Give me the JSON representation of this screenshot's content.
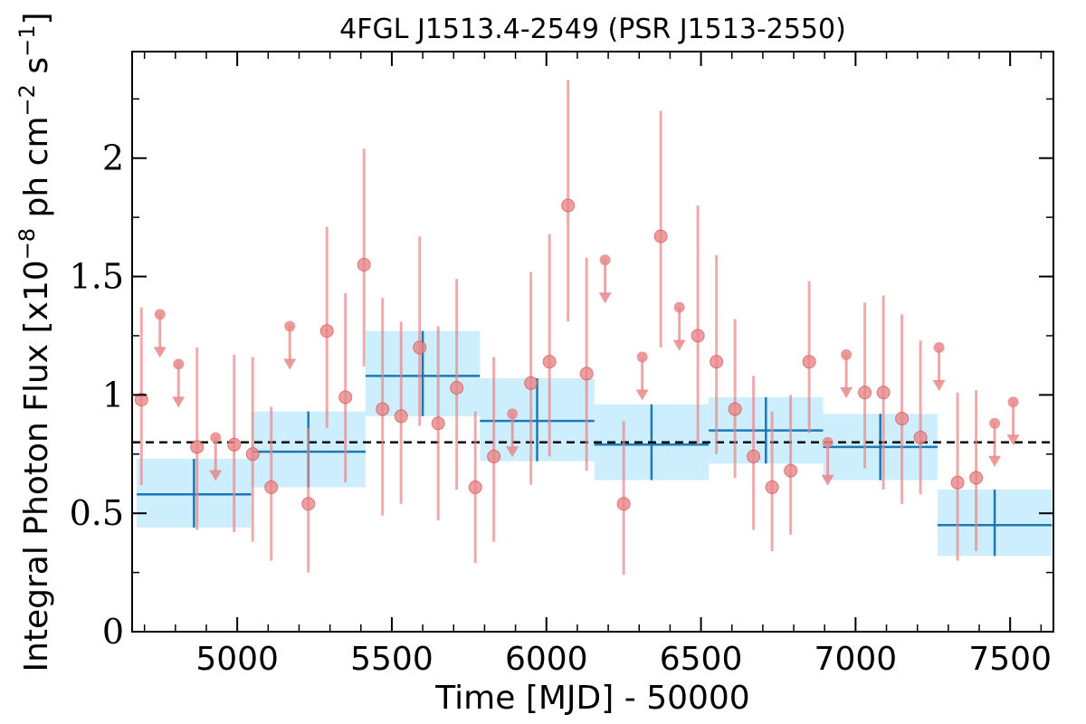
{
  "chart_data": {
    "type": "scatter",
    "title": "4FGL J1513.4-2549 (PSR J1513-2550)",
    "xlabel": "Time [MJD] - 50000",
    "ylabel": "Integral Photon Flux [x10",
    "ylabel_exp1": "−8",
    "ylabel_mid": " ph cm",
    "ylabel_exp2": "−2",
    "ylabel_mid2": " s",
    "ylabel_exp3": "−1",
    "ylabel_end": "]",
    "xlim": [
      4660,
      7640
    ],
    "ylim": [
      0,
      2.45
    ],
    "xticks": [
      5000,
      5500,
      6000,
      6500,
      7000,
      7500
    ],
    "yticks": [
      0,
      0.5,
      1,
      1.5,
      2
    ],
    "ytick_labels": [
      "0",
      "0.5",
      "1",
      "1.5",
      "2"
    ],
    "xtick_labels": [
      "5000",
      "5500",
      "6000",
      "6500",
      "7000",
      "7500"
    ],
    "reference_flux": 0.8,
    "colors": {
      "points": "#e8878a",
      "points_edge": "#d9534f",
      "bins_fill": "#cdeefc",
      "bins_line": "#1f77b4",
      "reference": "#000000"
    },
    "short_bins": [
      {
        "x": 4690,
        "y": 0.98,
        "lo": 0.62,
        "hi": 1.37
      },
      {
        "x": 4750,
        "ul": 1.34
      },
      {
        "x": 4810,
        "ul": 1.13
      },
      {
        "x": 4870,
        "y": 0.78,
        "lo": 0.43,
        "hi": 1.2
      },
      {
        "x": 4930,
        "ul": 0.82
      },
      {
        "x": 4990,
        "y": 0.79,
        "lo": 0.42,
        "hi": 1.17
      },
      {
        "x": 5050,
        "y": 0.75,
        "lo": 0.38,
        "hi": 1.16
      },
      {
        "x": 5110,
        "y": 0.61,
        "lo": 0.3,
        "hi": 0.95
      },
      {
        "x": 5170,
        "ul": 1.29
      },
      {
        "x": 5230,
        "y": 0.54,
        "lo": 0.25,
        "hi": 0.86
      },
      {
        "x": 5290,
        "y": 1.27,
        "lo": 0.86,
        "hi": 1.71
      },
      {
        "x": 5350,
        "y": 0.99,
        "lo": 0.63,
        "hi": 1.43
      },
      {
        "x": 5410,
        "y": 1.55,
        "lo": 1.12,
        "hi": 2.04
      },
      {
        "x": 5470,
        "y": 0.94,
        "lo": 0.49,
        "hi": 1.41
      },
      {
        "x": 5530,
        "y": 0.91,
        "lo": 0.54,
        "hi": 1.31
      },
      {
        "x": 5590,
        "y": 1.2,
        "lo": 0.87,
        "hi": 1.67
      },
      {
        "x": 5650,
        "y": 0.88,
        "lo": 0.47,
        "hi": 1.29
      },
      {
        "x": 5710,
        "y": 1.03,
        "lo": 0.6,
        "hi": 1.49
      },
      {
        "x": 5770,
        "y": 0.61,
        "lo": 0.29,
        "hi": 0.93
      },
      {
        "x": 5830,
        "y": 0.74,
        "lo": 0.38,
        "hi": 1.16
      },
      {
        "x": 5890,
        "ul": 0.92
      },
      {
        "x": 5950,
        "y": 1.05,
        "lo": 0.62,
        "hi": 1.52
      },
      {
        "x": 6010,
        "y": 1.14,
        "lo": 0.74,
        "hi": 1.68
      },
      {
        "x": 6070,
        "y": 1.8,
        "lo": 1.31,
        "hi": 2.33
      },
      {
        "x": 6130,
        "y": 1.09,
        "lo": 0.68,
        "hi": 1.58
      },
      {
        "x": 6190,
        "ul": 1.57
      },
      {
        "x": 6250,
        "y": 0.54,
        "lo": 0.24,
        "hi": 0.89
      },
      {
        "x": 6310,
        "ul": 1.16
      },
      {
        "x": 6370,
        "y": 1.67,
        "lo": 1.2,
        "hi": 2.2
      },
      {
        "x": 6430,
        "ul": 1.37
      },
      {
        "x": 6490,
        "y": 1.25,
        "lo": 0.79,
        "hi": 1.8
      },
      {
        "x": 6550,
        "y": 1.14,
        "lo": 0.75,
        "hi": 1.59
      },
      {
        "x": 6610,
        "y": 0.94,
        "lo": 0.65,
        "hi": 1.32
      },
      {
        "x": 6670,
        "y": 0.74,
        "lo": 0.43,
        "hi": 1.08
      },
      {
        "x": 6730,
        "y": 0.61,
        "lo": 0.34,
        "hi": 0.93
      },
      {
        "x": 6790,
        "y": 0.68,
        "lo": 0.41,
        "hi": 1.0
      },
      {
        "x": 6850,
        "y": 1.14,
        "lo": 0.84,
        "hi": 1.48
      },
      {
        "x": 6910,
        "ul": 0.8
      },
      {
        "x": 6970,
        "ul": 1.17
      },
      {
        "x": 7030,
        "y": 1.01,
        "lo": 0.69,
        "hi": 1.39
      },
      {
        "x": 7090,
        "y": 1.01,
        "lo": 0.6,
        "hi": 1.42
      },
      {
        "x": 7150,
        "y": 0.9,
        "lo": 0.54,
        "hi": 1.34
      },
      {
        "x": 7210,
        "y": 0.82,
        "lo": 0.58,
        "hi": 1.23
      },
      {
        "x": 7270,
        "ul": 1.2
      },
      {
        "x": 7330,
        "y": 0.63,
        "lo": 0.3,
        "hi": 1.01
      },
      {
        "x": 7390,
        "y": 0.65,
        "lo": 0.34,
        "hi": 1.02
      },
      {
        "x": 7450,
        "ul": 0.88
      },
      {
        "x": 7510,
        "ul": 0.97
      }
    ],
    "long_bins": [
      {
        "x0": 4675,
        "x1": 5045,
        "xc": 4860,
        "y": 0.58,
        "lo": 0.44,
        "hi": 0.73
      },
      {
        "x0": 5045,
        "x1": 5415,
        "xc": 5230,
        "y": 0.76,
        "lo": 0.61,
        "hi": 0.93
      },
      {
        "x0": 5415,
        "x1": 5785,
        "xc": 5600,
        "y": 1.08,
        "lo": 0.91,
        "hi": 1.27
      },
      {
        "x0": 5785,
        "x1": 6155,
        "xc": 5970,
        "y": 0.89,
        "lo": 0.72,
        "hi": 1.07
      },
      {
        "x0": 6155,
        "x1": 6525,
        "xc": 6340,
        "y": 0.79,
        "lo": 0.64,
        "hi": 0.96
      },
      {
        "x0": 6525,
        "x1": 6895,
        "xc": 6710,
        "y": 0.85,
        "lo": 0.71,
        "hi": 0.99
      },
      {
        "x0": 6895,
        "x1": 7265,
        "xc": 7080,
        "y": 0.78,
        "lo": 0.64,
        "hi": 0.92
      },
      {
        "x0": 7265,
        "x1": 7635,
        "xc": 7450,
        "y": 0.45,
        "lo": 0.32,
        "hi": 0.6
      }
    ]
  }
}
